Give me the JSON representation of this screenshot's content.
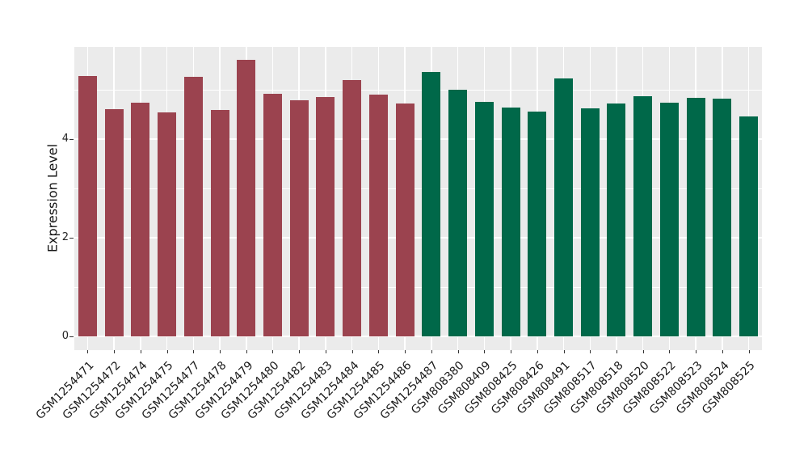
{
  "chart_data": {
    "type": "bar",
    "title": "",
    "xlabel": "",
    "ylabel": "Expression Level",
    "ylim": [
      0,
      5.88
    ],
    "yticks_major": [
      0,
      2,
      4
    ],
    "yticks_minor": [
      1,
      3,
      5
    ],
    "grid": "on",
    "legend_position": "none",
    "panel_background": "#EBEBEB",
    "grid_color": "#FFFFFF",
    "group_colors": {
      "group1": "#9B434F",
      "group2": "#006849"
    },
    "categories": [
      "GSM1254471",
      "GSM1254472",
      "GSM1254474",
      "GSM1254475",
      "GSM1254477",
      "GSM1254478",
      "GSM1254479",
      "GSM1254480",
      "GSM1254482",
      "GSM1254483",
      "GSM1254484",
      "GSM1254485",
      "GSM1254486",
      "GSM1254487",
      "GSM808380",
      "GSM808409",
      "GSM808425",
      "GSM808426",
      "GSM808491",
      "GSM808517",
      "GSM808518",
      "GSM808520",
      "GSM808522",
      "GSM808523",
      "GSM808524",
      "GSM808525"
    ],
    "values": [
      5.28,
      4.62,
      4.75,
      4.55,
      5.27,
      4.59,
      5.61,
      4.93,
      4.79,
      4.86,
      5.2,
      4.91,
      4.73,
      5.37,
      5.01,
      4.76,
      4.65,
      4.57,
      5.24,
      4.63,
      4.73,
      4.88,
      4.75,
      4.84,
      4.83,
      4.46
    ],
    "groups": [
      "group1",
      "group1",
      "group1",
      "group1",
      "group1",
      "group1",
      "group1",
      "group1",
      "group1",
      "group1",
      "group1",
      "group1",
      "group1",
      "group2",
      "group2",
      "group2",
      "group2",
      "group2",
      "group2",
      "group2",
      "group2",
      "group2",
      "group2",
      "group2",
      "group2",
      "group2"
    ]
  }
}
